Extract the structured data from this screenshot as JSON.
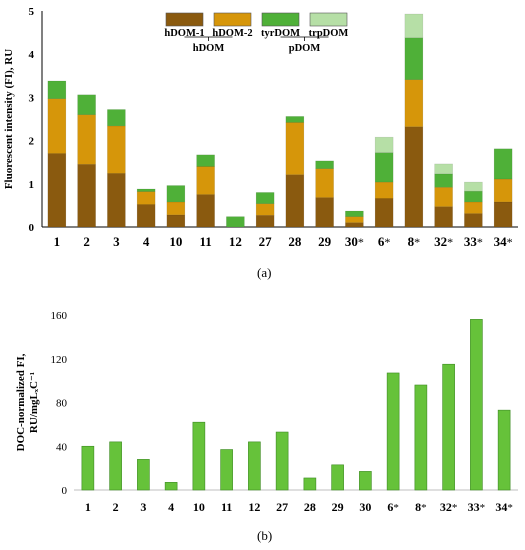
{
  "chart_data": [
    {
      "type": "bar",
      "stacked": true,
      "panel_label": "(a)",
      "ylabel": "Fluorescent intensity (FI), RU",
      "ylim": [
        0,
        5
      ],
      "yticks": [
        "0",
        "1",
        "2",
        "3",
        "4",
        "5"
      ],
      "categories": [
        "1",
        "2",
        "3",
        "4",
        "10",
        "11",
        "12",
        "27",
        "28",
        "29",
        "30*",
        "6*",
        "8*",
        "32*",
        "33*",
        "34*"
      ],
      "grid": false,
      "legend_position": "top-center",
      "legend_groups": [
        "hDOM",
        "pDOM"
      ],
      "series": [
        {
          "name": "hDOM-1",
          "color": "#8a5a0f",
          "values": [
            1.7,
            1.45,
            1.24,
            0.52,
            0.28,
            0.75,
            0.0,
            0.27,
            1.21,
            0.68,
            0.1,
            0.66,
            2.32,
            0.47,
            0.31,
            0.58
          ]
        },
        {
          "name": "hDOM-2",
          "color": "#d6960a",
          "values": [
            1.27,
            1.15,
            1.1,
            0.3,
            0.3,
            0.65,
            0.0,
            0.27,
            1.21,
            0.67,
            0.14,
            0.38,
            1.09,
            0.45,
            0.27,
            0.53
          ]
        },
        {
          "name": "tyrDOM",
          "color": "#4fb038",
          "values": [
            0.41,
            0.46,
            0.38,
            0.06,
            0.38,
            0.27,
            0.24,
            0.26,
            0.14,
            0.18,
            0.13,
            0.68,
            0.97,
            0.31,
            0.25,
            0.7
          ]
        },
        {
          "name": "trpDOM",
          "color": "#b6dfa6",
          "values": [
            0,
            0,
            0,
            0,
            0,
            0,
            0,
            0,
            0,
            0,
            0,
            0.36,
            0.55,
            0.23,
            0.21,
            0
          ]
        }
      ]
    },
    {
      "type": "bar",
      "panel_label": "(b)",
      "ylabel": "DOC-normalized FI,\nRU/mgLₓC⁻¹",
      "ylim": [
        0,
        160
      ],
      "yticks": [
        "0",
        "40",
        "80",
        "120",
        "160"
      ],
      "categories": [
        "1",
        "2",
        "3",
        "4",
        "10",
        "11",
        "12",
        "27",
        "28",
        "29",
        "30",
        "6*",
        "8*",
        "32*",
        "33*",
        "34*"
      ],
      "grid": false,
      "color": "#66c23a",
      "values": [
        40,
        44,
        28,
        7,
        62,
        37,
        44,
        53,
        11,
        23,
        17,
        107,
        96,
        115,
        156,
        73
      ]
    }
  ]
}
